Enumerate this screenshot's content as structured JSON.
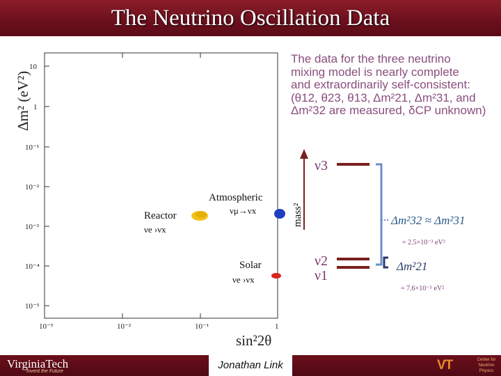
{
  "slide": {
    "title": "The Neutrino Oscillation Data"
  },
  "description": {
    "lines": [
      "The data for the three neutrino",
      "mixing model is nearly complete",
      "and extraordinarily self-consistent:",
      "(θ12, θ23, θ13, Δm²21, Δm²31, and",
      "Δm²32 are measured, δCP unknown)"
    ]
  },
  "plot": {
    "y_axis_label": "Δm² (eV²)",
    "x_axis_label": "sin²2θ",
    "x_ticks": [
      "10⁻³",
      "10⁻²",
      "10⁻¹",
      "1"
    ],
    "y_ticks": [
      "10",
      "1",
      "10⁻¹",
      "10⁻²",
      "10⁻³",
      "10⁻⁴",
      "10⁻⁵"
    ],
    "regions": [
      {
        "name": "Atmospheric",
        "process": "νμ→νx",
        "color": "#1e3fbf"
      },
      {
        "name": "Reactor",
        "process": "νe   ›νx",
        "color": "#f2c21b"
      },
      {
        "name": "Solar",
        "process": "νe   ›νx",
        "color": "#d9231f"
      }
    ],
    "colors": {
      "atmospheric": "#1e3fbf",
      "reactor": "#f2c21b",
      "solar": "#d9231f"
    }
  },
  "mass_diagram": {
    "axis_label": "mass²",
    "states": [
      "ν3",
      "ν2",
      "ν1"
    ],
    "large_split_label": "Δm²32 ≈ Δm²31",
    "large_split_value": "= 2.5×10⁻³ eV²",
    "small_split_label": "Δm²21",
    "small_split_value": "= 7.6×10⁻⁵ eV²"
  },
  "footer": {
    "institution": "VirginiaTech",
    "tagline": "Invent the Future",
    "presenter": "Jonathan Link",
    "center_lines": [
      "Center for",
      "Neutrino",
      "Physics"
    ],
    "vt_mark": "VT"
  }
}
